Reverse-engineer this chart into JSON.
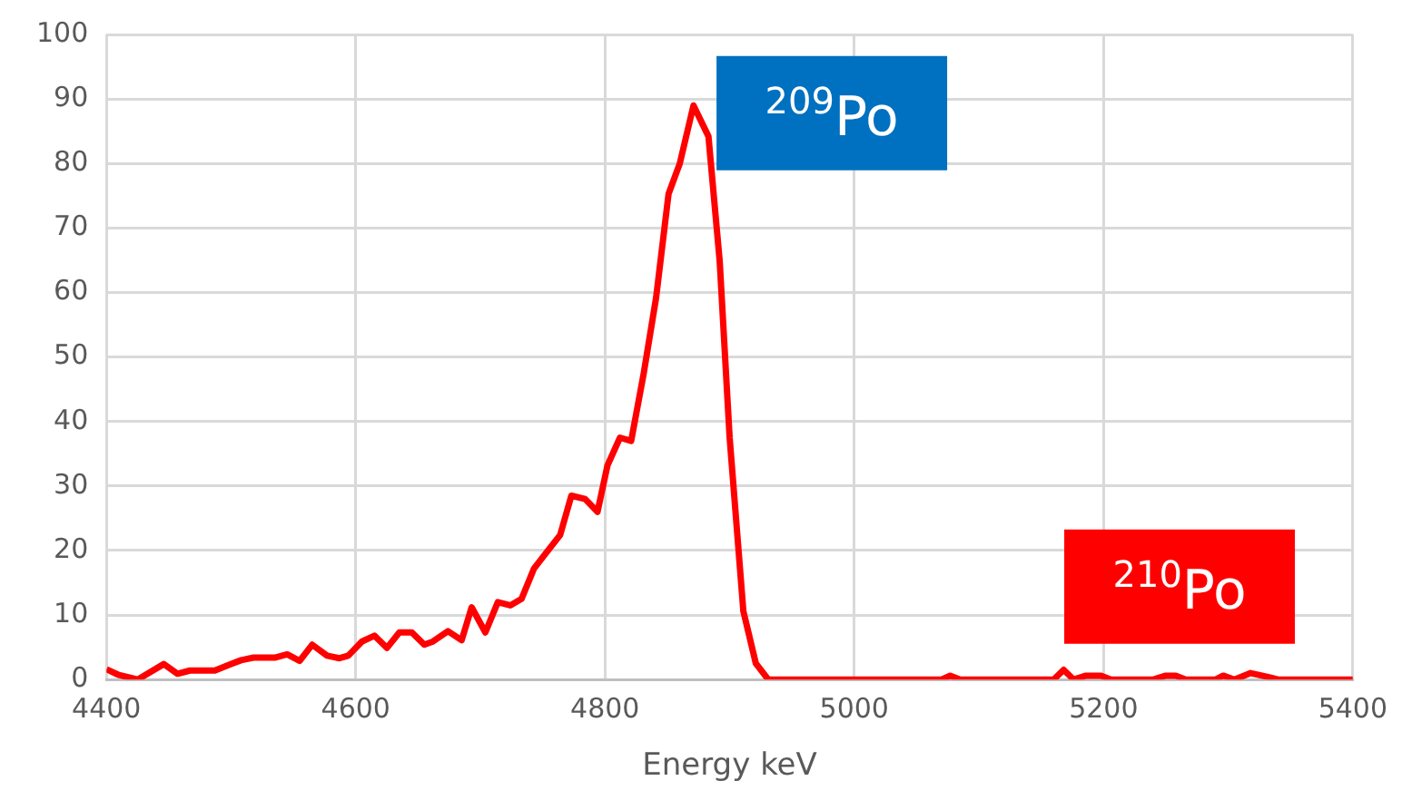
{
  "chart_data": {
    "type": "line",
    "xlabel": "Energy keV",
    "xlim": [
      4400,
      5400
    ],
    "xticks": [
      4400,
      4600,
      4800,
      5000,
      5200,
      5400
    ],
    "ylim": [
      0,
      100
    ],
    "yticks": [
      0,
      10,
      20,
      30,
      40,
      50,
      60,
      70,
      80,
      90,
      100
    ],
    "grid": true,
    "legend": false,
    "marker": "none",
    "line_style": "solid",
    "annotations": [
      "$^{209}$Po",
      "$^{210}$Po"
    ],
    "series": [
      {
        "color": "#ff0000",
        "x": [
          4400,
          4410,
          4425,
          4446,
          4457,
          4467,
          4487,
          4496,
          4508,
          4518,
          4535,
          4545,
          4555,
          4565,
          4577,
          4587,
          4594,
          4605,
          4615,
          4625,
          4635,
          4645,
          4655,
          4662,
          4674,
          4685,
          4693,
          4704,
          4714,
          4724,
          4733,
          4743,
          4753,
          4764,
          4773,
          4784,
          4794,
          4802,
          4812,
          4821,
          4831,
          4841,
          4851,
          4860,
          4871,
          4883,
          4892,
          4900,
          4911,
          4921,
          4931,
          5000,
          5070,
          5077,
          5085,
          5160,
          5168,
          5176,
          5186,
          5198,
          5206,
          5240,
          5250,
          5258,
          5266,
          5290,
          5296,
          5305,
          5318,
          5332,
          5340,
          5400
        ],
        "values": [
          1.6,
          0.7,
          0,
          2.4,
          0.9,
          1.4,
          1.4,
          2.1,
          3,
          3.4,
          3.4,
          3.9,
          2.9,
          5.4,
          3.7,
          3.3,
          3.7,
          5.9,
          6.8,
          4.9,
          7.3,
          7.3,
          5.4,
          5.9,
          7.5,
          6.1,
          11.2,
          7.3,
          12,
          11.5,
          12.5,
          17.2,
          19.7,
          22.4,
          28.5,
          28,
          26,
          33.2,
          37.5,
          37,
          47.4,
          59.2,
          75.3,
          80,
          89,
          84.2,
          64.9,
          37.5,
          10.6,
          2.5,
          0,
          0,
          0,
          0.6,
          0,
          0,
          1.5,
          0,
          0.6,
          0.6,
          0,
          0,
          0.6,
          0.6,
          0,
          0,
          0.6,
          0,
          1,
          0.4,
          0,
          0
        ]
      }
    ]
  }
}
